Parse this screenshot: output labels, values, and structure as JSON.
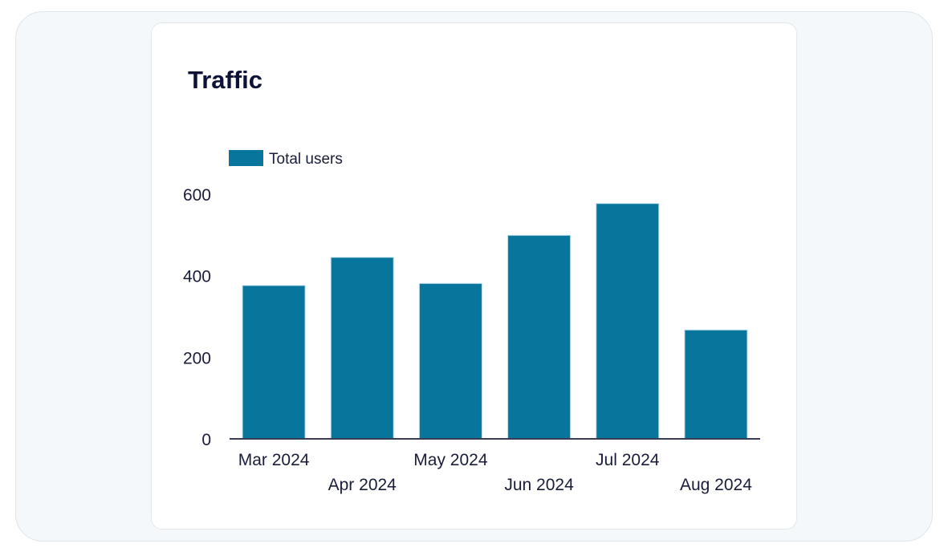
{
  "chart_data": {
    "type": "bar",
    "title": "Traffic",
    "categories": [
      "Mar 2024",
      "Apr 2024",
      "May 2024",
      "Jun 2024",
      "Jul 2024",
      "Aug 2024"
    ],
    "series": [
      {
        "name": "Total users",
        "values": [
          376,
          445,
          381,
          499,
          577,
          267
        ],
        "color": "#08769c"
      }
    ],
    "yticks": [
      0,
      200,
      400,
      600
    ],
    "ylim": [
      0,
      600
    ],
    "legend": "top-left",
    "grid": false
  }
}
